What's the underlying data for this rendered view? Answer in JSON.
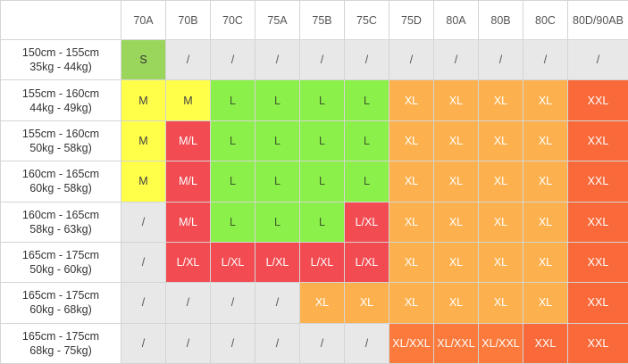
{
  "table": {
    "columns": [
      "70A",
      "70B",
      "70C",
      "75A",
      "75B",
      "75C",
      "75D",
      "80A",
      "80B",
      "80C",
      "80D/90AB"
    ],
    "rows": [
      {
        "label": [
          "150cm - 155cm",
          "35kg - 44kg)"
        ],
        "cells": [
          "S",
          "/",
          "/",
          "/",
          "/",
          "/",
          "/",
          "/",
          "/",
          "/",
          "/"
        ]
      },
      {
        "label": [
          "155cm - 160cm",
          "44kg - 49kg)"
        ],
        "cells": [
          "M",
          "M",
          "L",
          "L",
          "L",
          "L",
          "XL",
          "XL",
          "XL",
          "XL",
          "XXL"
        ]
      },
      {
        "label": [
          "155cm - 160cm",
          "50kg - 58kg)"
        ],
        "cells": [
          "M",
          "M/L",
          "L",
          "L",
          "L",
          "L",
          "XL",
          "XL",
          "XL",
          "XL",
          "XXL"
        ]
      },
      {
        "label": [
          "160cm - 165cm",
          "60kg - 58kg)"
        ],
        "cells": [
          "M",
          "M/L",
          "L",
          "L",
          "L",
          "L",
          "XL",
          "XL",
          "XL",
          "XL",
          "XXL"
        ]
      },
      {
        "label": [
          "160cm - 165cm",
          "58kg - 63kg)"
        ],
        "cells": [
          "/",
          "M/L",
          "L",
          "L",
          "L",
          "L/XL",
          "XL",
          "XL",
          "XL",
          "XL",
          "XXL"
        ]
      },
      {
        "label": [
          "165cm - 175cm",
          "50kg - 60kg)"
        ],
        "cells": [
          "/",
          "L/XL",
          "L/XL",
          "L/XL",
          "L/XL",
          "L/XL",
          "XL",
          "XL",
          "XL",
          "XL",
          "XXL"
        ]
      },
      {
        "label": [
          "165cm - 175cm",
          "60kg - 68kg)"
        ],
        "cells": [
          "/",
          "/",
          "/",
          "/",
          "XL",
          "XL",
          "XL",
          "XL",
          "XL",
          "XL",
          "XXL"
        ]
      },
      {
        "label": [
          "165cm - 175cm",
          "68kg - 75kg)"
        ],
        "cells": [
          "/",
          "/",
          "/",
          "/",
          "/",
          "/",
          "XL/XXL",
          "XL/XXL",
          "XL/XXL",
          "XXL",
          "XXL"
        ]
      }
    ],
    "cell_styles": {
      "S": {
        "bg": "#9bd65c",
        "fg": "#333333"
      },
      "M": {
        "bg": "#ffff4a",
        "fg": "#444444"
      },
      "M/L": {
        "bg": "#f24b52",
        "fg": "#ffffff"
      },
      "L": {
        "bg": "#8cf04a",
        "fg": "#3a5a2a"
      },
      "L/XL": {
        "bg": "#f24b52",
        "fg": "#ffffff"
      },
      "XL": {
        "bg": "#fdb14e",
        "fg": "#ffffff"
      },
      "XL/XXL": {
        "bg": "#fb7a3c",
        "fg": "#ffffff"
      },
      "XXL": {
        "bg": "#f9693a",
        "fg": "#ffffff"
      },
      "/": {
        "bg": "#e8e8e8",
        "fg": "#555555"
      }
    }
  }
}
